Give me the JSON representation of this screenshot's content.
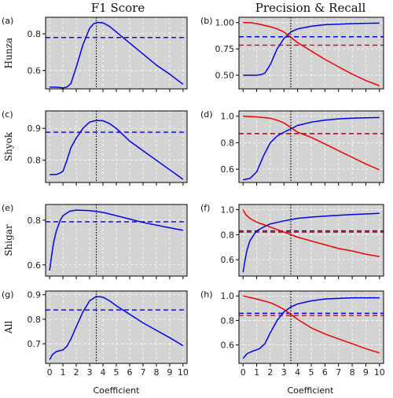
{
  "figure": {
    "col_titles": [
      "F1 Score",
      "Precision & Recall"
    ],
    "xlabel": "Coefficient",
    "x_ticks": [
      0,
      1,
      2,
      3,
      4,
      5,
      6,
      7,
      8,
      9,
      10
    ],
    "vline_x": 3.5,
    "colors": {
      "blue": "#0000ee",
      "red": "#ee0000",
      "panel_bg": "#d3d3d3",
      "vline": "#000000",
      "grid": "#ffffff"
    }
  },
  "chart_data": [
    {
      "type": "line",
      "letter": "(a)",
      "row_label": "Hunza",
      "col": 0,
      "row": 0,
      "xlim": [
        -0.3,
        10.3
      ],
      "ylim": [
        0.5,
        0.89
      ],
      "yticks": [
        0.6,
        0.8
      ],
      "ytick_labels": [
        "0.6",
        "0.8"
      ],
      "series": [
        {
          "color": "blue",
          "x": [
            0,
            0.5,
            1,
            1.3,
            1.6,
            2,
            2.5,
            3,
            3.3,
            3.6,
            4,
            4.5,
            5,
            5.5,
            6,
            7,
            8,
            9,
            10
          ],
          "y": [
            0.51,
            0.51,
            0.505,
            0.51,
            0.53,
            0.62,
            0.74,
            0.83,
            0.855,
            0.862,
            0.86,
            0.84,
            0.81,
            0.78,
            0.75,
            0.69,
            0.63,
            0.58,
            0.525
          ]
        }
      ],
      "hlines": [
        {
          "color": "blue",
          "y": 0.78
        }
      ]
    },
    {
      "type": "line",
      "letter": "(b)",
      "row_label": "",
      "col": 1,
      "row": 0,
      "xlim": [
        -0.3,
        10.3
      ],
      "ylim": [
        0.37,
        1.05
      ],
      "yticks": [
        0.5,
        0.75,
        1.0
      ],
      "ytick_labels": [
        "0.50",
        "0.75",
        "1.00"
      ],
      "series": [
        {
          "color": "blue",
          "x": [
            0,
            0.5,
            1,
            1.3,
            1.6,
            2,
            2.5,
            3,
            3.5,
            4,
            5,
            6,
            7,
            8,
            9,
            10
          ],
          "y": [
            0.5,
            0.5,
            0.5,
            0.505,
            0.52,
            0.6,
            0.75,
            0.85,
            0.91,
            0.94,
            0.965,
            0.98,
            0.985,
            0.99,
            0.993,
            0.995
          ]
        },
        {
          "color": "red",
          "x": [
            0,
            0.5,
            1,
            1.5,
            2,
            2.5,
            3,
            3.5,
            4,
            5,
            6,
            7,
            8,
            9,
            10
          ],
          "y": [
            1.0,
            1.0,
            0.99,
            0.975,
            0.96,
            0.94,
            0.91,
            0.86,
            0.81,
            0.73,
            0.65,
            0.58,
            0.51,
            0.45,
            0.4
          ]
        }
      ],
      "hlines": [
        {
          "color": "blue",
          "y": 0.865
        },
        {
          "color": "red",
          "y": 0.785
        }
      ]
    },
    {
      "type": "line",
      "letter": "(c)",
      "row_label": "Shyok",
      "col": 0,
      "row": 1,
      "xlim": [
        -0.3,
        10.3
      ],
      "ylim": [
        0.73,
        0.955
      ],
      "yticks": [
        0.8,
        0.9
      ],
      "ytick_labels": [
        "0.8",
        "0.9"
      ],
      "series": [
        {
          "color": "blue",
          "x": [
            0,
            0.5,
            0.8,
            1,
            1.3,
            1.6,
            2,
            2.5,
            3,
            3.5,
            4,
            4.5,
            5,
            5.5,
            6,
            7,
            8,
            9,
            10
          ],
          "y": [
            0.755,
            0.755,
            0.76,
            0.765,
            0.8,
            0.84,
            0.87,
            0.9,
            0.92,
            0.925,
            0.924,
            0.915,
            0.9,
            0.88,
            0.86,
            0.83,
            0.8,
            0.77,
            0.74
          ]
        }
      ],
      "hlines": [
        {
          "color": "blue",
          "y": 0.888
        }
      ]
    },
    {
      "type": "line",
      "letter": "(d)",
      "row_label": "",
      "col": 1,
      "row": 1,
      "xlim": [
        -0.3,
        10.3
      ],
      "ylim": [
        0.5,
        1.04
      ],
      "yticks": [
        0.6,
        0.8,
        1.0
      ],
      "ytick_labels": [
        "0.6",
        "0.8",
        "1.0"
      ],
      "series": [
        {
          "color": "blue",
          "x": [
            0,
            0.5,
            1,
            1.5,
            2,
            2.5,
            3,
            3.5,
            4,
            5,
            6,
            7,
            8,
            9,
            10
          ],
          "y": [
            0.52,
            0.53,
            0.58,
            0.7,
            0.8,
            0.85,
            0.88,
            0.905,
            0.93,
            0.955,
            0.97,
            0.98,
            0.985,
            0.988,
            0.99
          ]
        },
        {
          "color": "red",
          "x": [
            0,
            1,
            2,
            2.5,
            3,
            3.5,
            4,
            5,
            6,
            7,
            8,
            9,
            10
          ],
          "y": [
            1.0,
            0.995,
            0.985,
            0.97,
            0.95,
            0.915,
            0.88,
            0.84,
            0.79,
            0.74,
            0.69,
            0.64,
            0.595
          ]
        }
      ],
      "hlines": [
        {
          "color": "blue",
          "y": 0.868
        },
        {
          "color": "red",
          "y": 0.868
        }
      ]
    },
    {
      "type": "line",
      "letter": "(e)",
      "row_label": "Shigar",
      "col": 0,
      "row": 2,
      "xlim": [
        -0.3,
        10.3
      ],
      "ylim": [
        0.55,
        0.87
      ],
      "yticks": [
        0.6,
        0.8
      ],
      "ytick_labels": [
        "0.6",
        "0.8"
      ],
      "series": [
        {
          "color": "blue",
          "x": [
            0,
            0.15,
            0.3,
            0.5,
            0.8,
            1,
            1.5,
            2,
            3,
            4,
            5,
            6,
            7,
            8,
            9,
            10
          ],
          "y": [
            0.575,
            0.64,
            0.7,
            0.75,
            0.8,
            0.82,
            0.84,
            0.845,
            0.843,
            0.835,
            0.82,
            0.805,
            0.79,
            0.778,
            0.766,
            0.755
          ]
        }
      ],
      "hlines": [
        {
          "color": "blue",
          "y": 0.793
        }
      ]
    },
    {
      "type": "line",
      "letter": "(f)",
      "row_label": "",
      "col": 1,
      "row": 2,
      "xlim": [
        -0.3,
        10.3
      ],
      "ylim": [
        0.47,
        1.04
      ],
      "yticks": [
        0.6,
        0.8,
        1.0
      ],
      "ytick_labels": [
        "0.6",
        "0.8",
        "1.0"
      ],
      "series": [
        {
          "color": "blue",
          "x": [
            0,
            0.15,
            0.3,
            0.5,
            0.8,
            1,
            1.5,
            2,
            3,
            4,
            5,
            6,
            7,
            8,
            9,
            10
          ],
          "y": [
            0.5,
            0.6,
            0.68,
            0.75,
            0.8,
            0.83,
            0.86,
            0.885,
            0.91,
            0.93,
            0.94,
            0.948,
            0.954,
            0.96,
            0.965,
            0.97
          ]
        },
        {
          "color": "red",
          "x": [
            0,
            0.2,
            0.5,
            1,
            1.5,
            2,
            3,
            4,
            5,
            6,
            7,
            8,
            9,
            10
          ],
          "y": [
            1.0,
            0.96,
            0.93,
            0.9,
            0.88,
            0.86,
            0.82,
            0.78,
            0.75,
            0.72,
            0.69,
            0.67,
            0.645,
            0.625
          ]
        }
      ],
      "hlines": [
        {
          "color": "blue",
          "y": 0.83
        },
        {
          "color": "red",
          "y": 0.82
        }
      ]
    },
    {
      "type": "line",
      "letter": "(g)",
      "row_label": "All",
      "col": 0,
      "row": 3,
      "xlim": [
        -0.3,
        10.3
      ],
      "ylim": [
        0.62,
        0.915
      ],
      "yticks": [
        0.7,
        0.8,
        0.9
      ],
      "ytick_labels": [
        "0.7",
        "0.8",
        "0.9"
      ],
      "series": [
        {
          "color": "blue",
          "x": [
            0,
            0.2,
            0.5,
            1,
            1.3,
            1.6,
            2,
            2.5,
            3,
            3.5,
            4,
            4.5,
            5,
            6,
            7,
            8,
            9,
            10
          ],
          "y": [
            0.635,
            0.655,
            0.668,
            0.675,
            0.69,
            0.72,
            0.77,
            0.83,
            0.875,
            0.893,
            0.89,
            0.875,
            0.855,
            0.82,
            0.785,
            0.755,
            0.725,
            0.692
          ]
        }
      ],
      "hlines": [
        {
          "color": "blue",
          "y": 0.838
        }
      ]
    },
    {
      "type": "line",
      "letter": "(h)",
      "row_label": "",
      "col": 1,
      "row": 3,
      "xlim": [
        -0.3,
        10.3
      ],
      "ylim": [
        0.45,
        1.04
      ],
      "yticks": [
        0.6,
        0.8,
        1.0
      ],
      "ytick_labels": [
        "0.6",
        "0.8",
        "1.0"
      ],
      "series": [
        {
          "color": "blue",
          "x": [
            0,
            0.3,
            0.7,
            1.2,
            1.6,
            2,
            2.5,
            3,
            3.5,
            4,
            5,
            6,
            7,
            8,
            9,
            10
          ],
          "y": [
            0.49,
            0.53,
            0.55,
            0.57,
            0.61,
            0.7,
            0.8,
            0.87,
            0.91,
            0.935,
            0.96,
            0.975,
            0.98,
            0.985,
            0.985,
            0.985
          ]
        },
        {
          "color": "red",
          "x": [
            0,
            1,
            2,
            2.5,
            3,
            3.5,
            4,
            5,
            6,
            7,
            8,
            9,
            10
          ],
          "y": [
            1.0,
            0.975,
            0.945,
            0.92,
            0.89,
            0.85,
            0.81,
            0.74,
            0.69,
            0.65,
            0.61,
            0.57,
            0.535
          ]
        }
      ],
      "hlines": [
        {
          "color": "blue",
          "y": 0.858
        },
        {
          "color": "red",
          "y": 0.84
        }
      ]
    }
  ]
}
